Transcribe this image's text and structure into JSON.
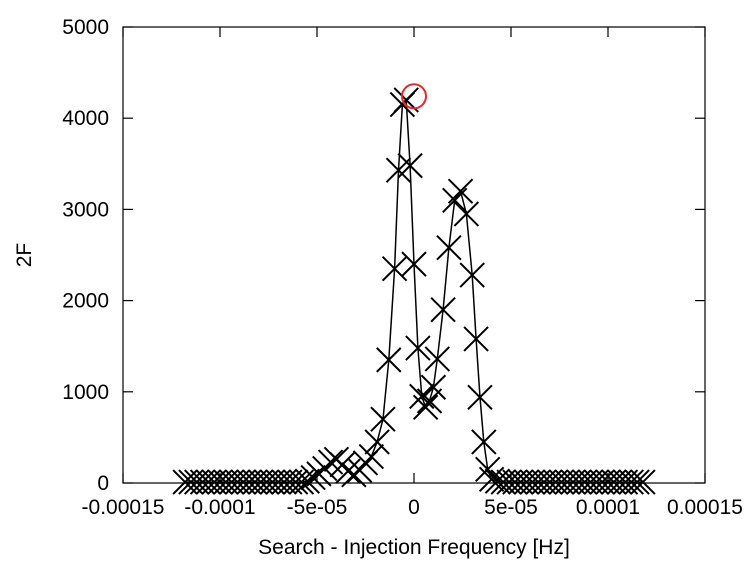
{
  "chart_data": {
    "type": "line",
    "title": "",
    "xlabel": "Search - Injection Frequency [Hz]",
    "ylabel": "2F",
    "xlim": [
      -0.00015,
      0.00015
    ],
    "ylim": [
      0,
      5000
    ],
    "xticks": [
      -0.00015,
      -0.0001,
      -5e-05,
      0,
      5e-05,
      0.0001,
      0.00015
    ],
    "xtick_labels": [
      "-0.00015",
      "-0.0001",
      "-5e-05",
      "0",
      "5e-05",
      "0.0001",
      "0.00015"
    ],
    "yticks": [
      0,
      1000,
      2000,
      3000,
      4000,
      5000
    ],
    "ytick_labels": [
      "0",
      "1000",
      "2000",
      "3000",
      "4000",
      "5000"
    ],
    "grid": false,
    "legend": "none",
    "series": [
      {
        "name": "2F",
        "marker": "x",
        "color": "#000000",
        "x": [
          -0.000118,
          -0.000115,
          -0.000112,
          -0.000109,
          -0.000106,
          -0.000103,
          -0.0001,
          -9.7e-05,
          -9.4e-05,
          -9.1e-05,
          -8.8e-05,
          -8.5e-05,
          -8.2e-05,
          -7.9e-05,
          -7.6e-05,
          -7.3e-05,
          -7e-05,
          -6.7e-05,
          -6.4e-05,
          -6.1e-05,
          -5.8e-05,
          -5.5e-05,
          -5.2e-05,
          -4.9e-05,
          -4.6e-05,
          -4.3e-05,
          -4e-05,
          -3.7e-05,
          -3.4e-05,
          -3.1e-05,
          -2.8e-05,
          -2.5e-05,
          -2.2e-05,
          -1.9e-05,
          -1.6e-05,
          -1.3e-05,
          -1e-05,
          -8e-06,
          -6e-06,
          -4e-06,
          -2e-06,
          0,
          2e-06,
          4e-06,
          6e-06,
          8e-06,
          1e-05,
          1.2e-05,
          1.5e-05,
          1.8e-05,
          2.1e-05,
          2.4e-05,
          2.7e-05,
          3e-05,
          3.2e-05,
          3.4e-05,
          3.6e-05,
          3.8e-05,
          4e-05,
          4.3e-05,
          4.6e-05,
          4.9e-05,
          5.2e-05,
          5.5e-05,
          5.8e-05,
          6.1e-05,
          6.4e-05,
          6.7e-05,
          7e-05,
          7.3e-05,
          7.6e-05,
          7.9e-05,
          8.2e-05,
          8.5e-05,
          8.8e-05,
          9.1e-05,
          9.4e-05,
          9.7e-05,
          0.0001,
          0.000103,
          0.000106,
          0.000109,
          0.000112,
          0.000115,
          0.000118
        ],
        "y": [
          10,
          10,
          10,
          10,
          10,
          10,
          10,
          10,
          10,
          10,
          10,
          10,
          10,
          10,
          10,
          10,
          10,
          10,
          10,
          10,
          10,
          20,
          60,
          100,
          160,
          230,
          260,
          200,
          130,
          90,
          140,
          220,
          290,
          450,
          700,
          1350,
          2350,
          3430,
          4150,
          4200,
          3480,
          2400,
          1480,
          950,
          830,
          900,
          1050,
          1360,
          1900,
          2580,
          3100,
          3200,
          2950,
          2280,
          1580,
          940,
          450,
          150,
          40,
          20,
          10,
          10,
          10,
          10,
          10,
          10,
          10,
          10,
          10,
          10,
          10,
          10,
          10,
          10,
          10,
          10,
          10,
          10,
          10,
          10,
          10,
          10,
          10,
          10,
          10
        ]
      }
    ],
    "highlight": {
      "x": 0,
      "y": 4240,
      "marker": "circle",
      "color": "#e8262a"
    }
  }
}
